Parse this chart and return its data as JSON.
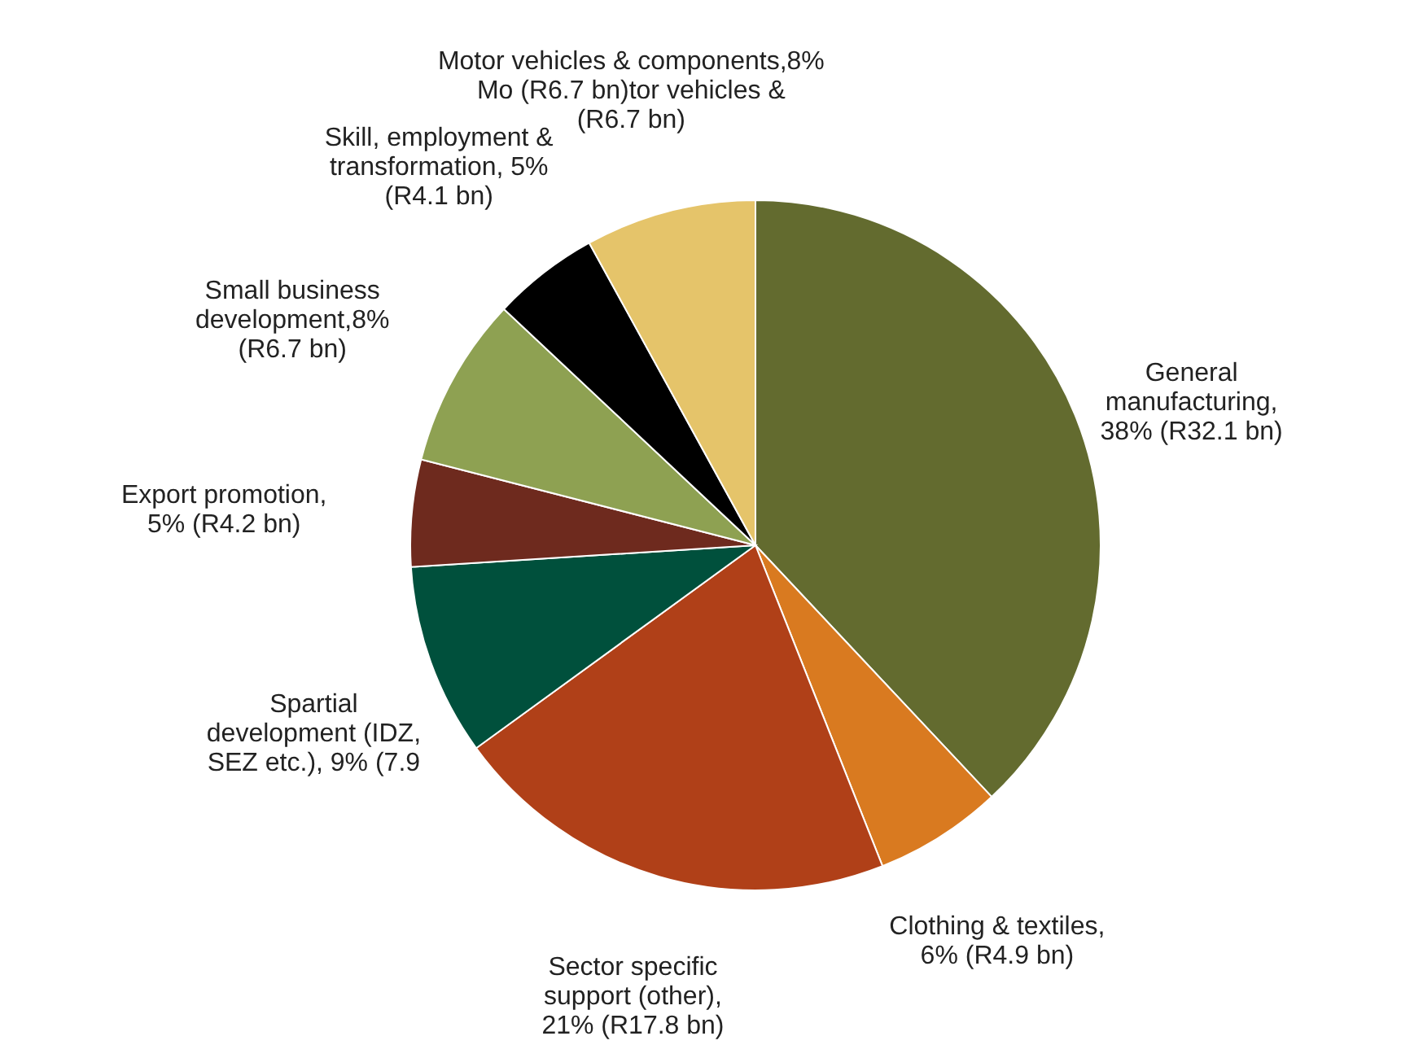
{
  "chart_data": {
    "type": "pie",
    "categories": [
      "General\nmanufacturing,\n38% (R32.1  bn)",
      "Clothing & textiles,\n6% (R4.9 bn)",
      "Sector    specific\nsupport    (other),\n21% (R17.8  bn)",
      "Spartial\ndevelopment (IDZ,\nSEZ etc.),  9% (7.9",
      "Export promotion,\n5% (R4.2 bn)",
      "Small business\ndevelopment,8%\n(R6.7 bn)",
      "Skill, employment &\ntransformation, 5%\n(R4.1 bn)",
      "Motor vehicles & components,8%\nMo (R6.7 bn)tor vehicles  &\n(R6.7 bn)"
    ],
    "values": [
      38,
      6,
      21,
      9,
      5,
      8,
      5,
      8
    ],
    "colors": [
      "#636b2f",
      "#d97a20",
      "#b04018",
      "#00503c",
      "#6e2a1e",
      "#8ea152",
      "#000000",
      "#e5c46a"
    ]
  }
}
